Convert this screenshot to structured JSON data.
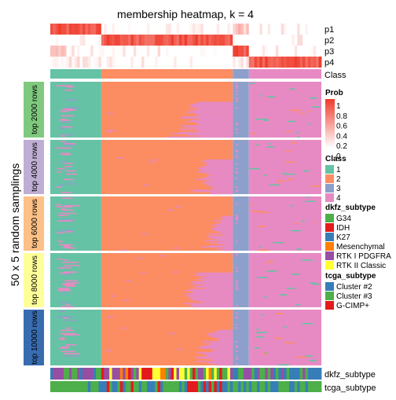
{
  "chart_data": {
    "type": "heatmap",
    "title": "membership heatmap, k = 4",
    "y_axis_label": "50 x 5 random samplings",
    "top_tracks": [
      "p1",
      "p2",
      "p3",
      "p4",
      "Class"
    ],
    "bottom_tracks": [
      "dkfz_subtype",
      "tcga_subtype"
    ],
    "row_groups": [
      "top 2000 rows",
      "top 4000 rows",
      "top 6000 rows",
      "top 8000 rows",
      "top 10000 rows"
    ],
    "row_group_colors": [
      "#7FC97F",
      "#BEAED4",
      "#FDC086",
      "#FFFF99",
      "#386CB0"
    ],
    "samplings_per_group": 50,
    "sample_blocks": [
      {
        "class": "1",
        "samples": 19
      },
      {
        "class": "2",
        "samples": 49
      },
      {
        "class": "3",
        "samples": 6
      },
      {
        "class": "4",
        "samples": 27
      }
    ],
    "legends": {
      "prob": {
        "title": "Prob",
        "ticks": [
          "1",
          "0.8",
          "0.6",
          "0.4",
          "0.2",
          "0"
        ],
        "colors": [
          "#FFFFFF",
          "#EF3B2C"
        ]
      },
      "class": {
        "title": "Class",
        "items": [
          {
            "label": "1",
            "color": "#66C2A5"
          },
          {
            "label": "2",
            "color": "#FC8D62"
          },
          {
            "label": "3",
            "color": "#8DA0CB"
          },
          {
            "label": "4",
            "color": "#E78AC3"
          }
        ]
      },
      "dkfz_subtype": {
        "title": "dkfz_subtype",
        "items": [
          {
            "label": "G34",
            "color": "#4DAF4A"
          },
          {
            "label": "IDH",
            "color": "#E41A1C"
          },
          {
            "label": "K27",
            "color": "#377EB8"
          },
          {
            "label": "Mesenchymal",
            "color": "#FF7F00"
          },
          {
            "label": "RTK I PDGFRA",
            "color": "#984EA3"
          },
          {
            "label": "RTK II Classic",
            "color": "#FFFF33"
          }
        ]
      },
      "tcga_subtype": {
        "title": "tcga_subtype",
        "items": [
          {
            "label": "Cluster #2",
            "color": "#377EB8"
          },
          {
            "label": "Cluster #3",
            "color": "#4DAF4A"
          },
          {
            "label": "G-CIMP+",
            "color": "#E41A1C"
          }
        ]
      }
    }
  }
}
